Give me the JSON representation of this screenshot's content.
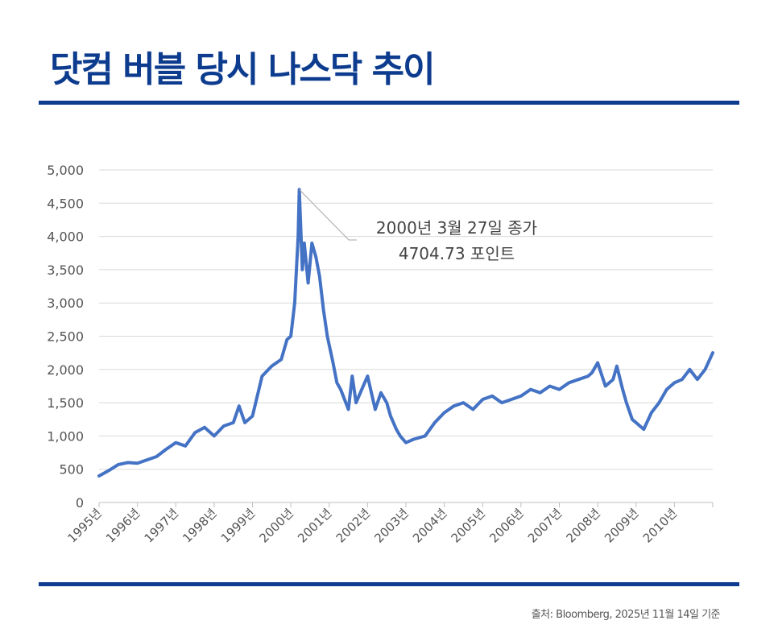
{
  "header": {
    "title": "닷컴 버블 당시 나스닥 추이"
  },
  "source": "출처: Bloomberg, 2025년 11월 14일 기준",
  "chart_data": {
    "type": "line",
    "title": "닷컴 버블 당시 나스닥 추이",
    "xlabel": "",
    "ylabel": "",
    "ylim": [
      0,
      5000
    ],
    "xlim": [
      1995.0,
      2011.0
    ],
    "y_ticks": [
      "0",
      "500",
      "1,000",
      "1,500",
      "2,000",
      "2,500",
      "3,000",
      "3,500",
      "4,000",
      "4,500",
      "5,000"
    ],
    "y_tick_values": [
      0,
      500,
      1000,
      1500,
      2000,
      2500,
      3000,
      3500,
      4000,
      4500,
      5000
    ],
    "x_ticks": [
      "1995년",
      "1996년",
      "1997년",
      "1998년",
      "1999년",
      "2000년",
      "2001년",
      "2002년",
      "2003년",
      "2004년",
      "2005년",
      "2006년",
      "2007년",
      "2008년",
      "2009년",
      "2010년"
    ],
    "x_tick_values": [
      1995,
      1996,
      1997,
      1998,
      1999,
      2000,
      2001,
      2002,
      2003,
      2004,
      2005,
      2006,
      2007,
      2008,
      2009,
      2010
    ],
    "grid": true,
    "series": [
      {
        "name": "NASDAQ",
        "color": "#4472c4",
        "x": [
          1995.0,
          1995.25,
          1995.5,
          1995.75,
          1996.0,
          1996.25,
          1996.5,
          1996.75,
          1997.0,
          1997.25,
          1997.5,
          1997.75,
          1998.0,
          1998.25,
          1998.5,
          1998.65,
          1998.8,
          1999.0,
          1999.25,
          1999.5,
          1999.75,
          1999.9,
          2000.0,
          2000.1,
          2000.19,
          2000.22,
          2000.3,
          2000.35,
          2000.45,
          2000.55,
          2000.65,
          2000.75,
          2000.85,
          2000.95,
          2001.1,
          2001.2,
          2001.3,
          2001.5,
          2001.6,
          2001.7,
          2001.85,
          2002.0,
          2002.2,
          2002.35,
          2002.5,
          2002.6,
          2002.75,
          2002.85,
          2003.0,
          2003.2,
          2003.5,
          2003.75,
          2004.0,
          2004.25,
          2004.5,
          2004.75,
          2005.0,
          2005.25,
          2005.5,
          2005.75,
          2006.0,
          2006.25,
          2006.5,
          2006.75,
          2007.0,
          2007.25,
          2007.5,
          2007.75,
          2007.85,
          2008.0,
          2008.2,
          2008.4,
          2008.5,
          2008.65,
          2008.75,
          2008.9,
          2009.0,
          2009.2,
          2009.4,
          2009.6,
          2009.8,
          2010.0,
          2010.2,
          2010.4,
          2010.6,
          2010.8,
          2011.0
        ],
        "values": [
          400,
          480,
          570,
          600,
          590,
          640,
          690,
          800,
          900,
          850,
          1050,
          1130,
          1000,
          1150,
          1200,
          1450,
          1200,
          1300,
          1900,
          2050,
          2150,
          2450,
          2500,
          3000,
          4000,
          4704.73,
          3500,
          3900,
          3300,
          3900,
          3700,
          3400,
          2900,
          2500,
          2100,
          1800,
          1700,
          1400,
          1900,
          1500,
          1700,
          1900,
          1400,
          1650,
          1500,
          1300,
          1100,
          1000,
          900,
          950,
          1000,
          1200,
          1350,
          1450,
          1500,
          1400,
          1550,
          1600,
          1500,
          1550,
          1600,
          1700,
          1650,
          1750,
          1700,
          1800,
          1850,
          1900,
          1950,
          2100,
          1750,
          1850,
          2050,
          1700,
          1500,
          1250,
          1200,
          1100,
          1350,
          1500,
          1700,
          1800,
          1850,
          2000,
          1850,
          2000,
          2250
        ]
      }
    ],
    "annotation": {
      "x": 2000.22,
      "y": 4704.73,
      "line1": "2000년 3월 27일 종가",
      "line2": "4704.73  포인트"
    }
  }
}
